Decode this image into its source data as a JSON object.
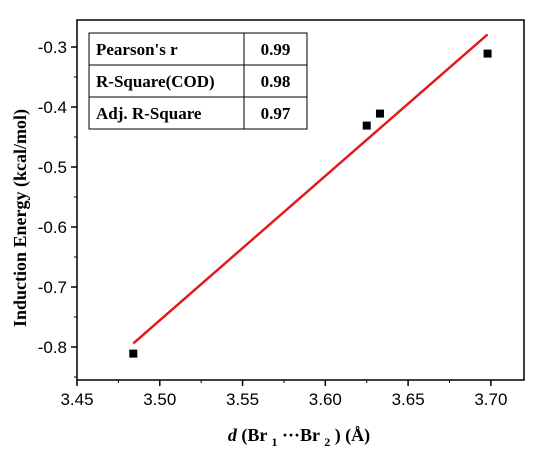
{
  "chart_data": {
    "type": "scatter",
    "xlabel": {
      "italic": "d",
      "open": " (Br",
      "sub1": "1",
      "mid": "···Br",
      "sub2": "2",
      "close": ") (Å)"
    },
    "ylabel": "Induction Energy (kcal/mol)",
    "xlim": [
      3.45,
      3.72
    ],
    "ylim": [
      -0.855,
      -0.255
    ],
    "x_ticks": [
      3.45,
      3.5,
      3.55,
      3.6,
      3.65,
      3.7
    ],
    "x_tick_labels": [
      "3.45",
      "3.50",
      "3.55",
      "3.60",
      "3.65",
      "3.70"
    ],
    "y_ticks": [
      -0.8,
      -0.7,
      -0.6,
      -0.5,
      -0.4,
      -0.3
    ],
    "y_tick_labels": [
      "-0.8",
      "-0.7",
      "-0.6",
      "-0.5",
      "-0.4",
      "-0.3"
    ],
    "points": [
      {
        "x": 3.484,
        "y": -0.811
      },
      {
        "x": 3.625,
        "y": -0.431
      },
      {
        "x": 3.633,
        "y": -0.411
      },
      {
        "x": 3.698,
        "y": -0.311
      }
    ],
    "fit_line": {
      "x": [
        3.484,
        3.698
      ],
      "y": [
        -0.794,
        -0.279
      ],
      "color": "#e31a1c"
    },
    "marker_color": "#000000",
    "stats_table": [
      {
        "label": "Pearson's r",
        "value": "0.99"
      },
      {
        "label": "R-Square(COD)",
        "value": "0.98"
      },
      {
        "label": "Adj. R-Square",
        "value": "0.97"
      }
    ],
    "grid": false
  }
}
